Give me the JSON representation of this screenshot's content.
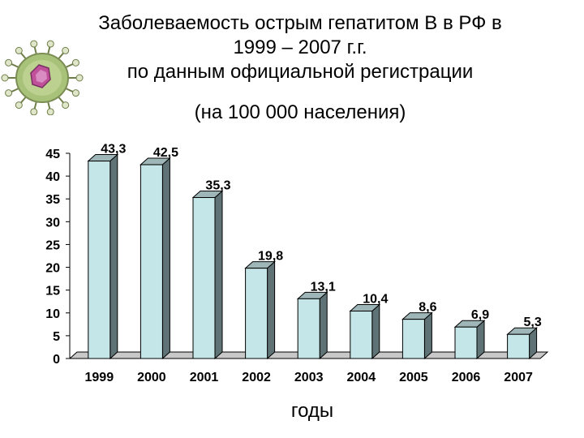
{
  "title_lines": [
    "Заболеваемость острым гепатитом В в РФ в",
    "1999 – 2007 г.г.",
    "по данным официальной регистрации"
  ],
  "subtitle": "(на 100 000 населения)",
  "colors": {
    "bar_front": "#c5e6e8",
    "bar_side": "#5f7376",
    "bar_top": "#9fb6b8",
    "floor": "#c8c8c8",
    "virus_body": "#a9c27a",
    "virus_core": "#c0509a"
  },
  "icons": [
    "virus-icon"
  ],
  "chart_data": {
    "type": "bar",
    "title": "Заболеваемость острым гепатитом В в РФ в 1999 – 2007 г.г. по данным официальной регистрации",
    "subtitle": "(на 100 000 населения)",
    "xlabel": "годы",
    "ylabel": "",
    "categories": [
      "1999",
      "2000",
      "2001",
      "2002",
      "2003",
      "2004",
      "2005",
      "2006",
      "2007"
    ],
    "values": [
      43.3,
      42.5,
      35.3,
      19.8,
      13.1,
      10.4,
      8.6,
      6.9,
      5.3
    ],
    "value_labels": [
      "43,3",
      "42,5",
      "35,3",
      "19,8",
      "13,1",
      "10,4",
      "8,6",
      "6,9",
      "5,3"
    ],
    "ylim": [
      0,
      45
    ],
    "yticks": [
      0,
      5,
      10,
      15,
      20,
      25,
      30,
      35,
      40,
      45
    ],
    "grid": false,
    "legend": "none",
    "style": "3d"
  }
}
